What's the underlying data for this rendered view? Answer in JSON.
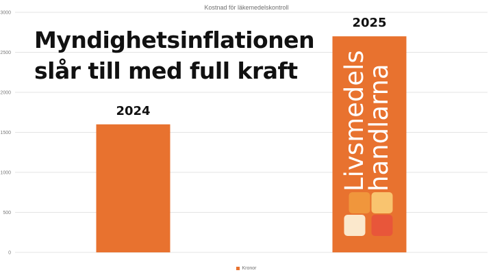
{
  "headline": {
    "line1": "Myndighetsinflationen",
    "line2": "slår till med full kraft"
  },
  "logo": {
    "text_line1": "Livsmedels",
    "text_line2": "handlarna",
    "tile_colors": [
      "#f0963c",
      "#f9c46f",
      "#fbe8cc",
      "#e8563a"
    ]
  },
  "colors": {
    "bar": "#e8722f",
    "grid": "#e3e3e3",
    "axis_text": "#7a7a7a"
  },
  "chart_data": {
    "type": "bar",
    "title": "Kostnad för läkemedelskontroll",
    "categories": [
      "2024",
      "2025"
    ],
    "series": [
      {
        "name": "Kronor",
        "values": [
          1600,
          2700
        ]
      }
    ],
    "data_labels": [
      "2024",
      "2025"
    ],
    "yticks": [
      "0",
      "500",
      "1000",
      "1500",
      "2000",
      "2500",
      "3000"
    ],
    "ylim": [
      0,
      3000
    ],
    "xlabel": "",
    "ylabel": "",
    "grid": true,
    "legend": "bottom"
  }
}
